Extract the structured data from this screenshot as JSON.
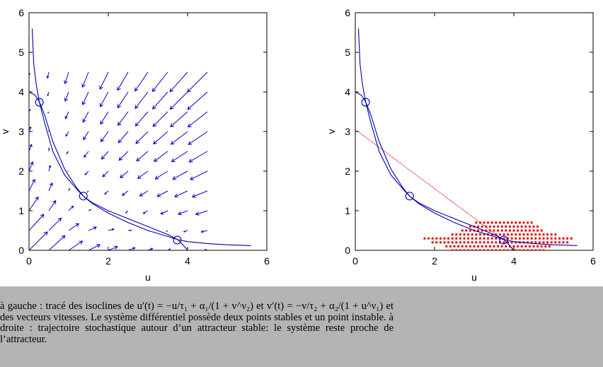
{
  "chart_data": [
    {
      "type": "line",
      "title": "",
      "xlabel": "u",
      "ylabel": "v",
      "xlim": [
        0,
        6
      ],
      "ylim": [
        0,
        6
      ],
      "xticks": [
        "0",
        "2",
        "4",
        "6"
      ],
      "yticks": [
        "0",
        "1",
        "2",
        "3",
        "4",
        "5",
        "6"
      ],
      "series": [
        {
          "x": [
            0.08,
            0.12,
            0.18,
            0.26,
            0.4,
            0.6,
            0.9,
            1.2,
            1.37,
            1.6,
            2.0,
            2.5,
            3.0,
            3.5,
            3.75,
            4.0,
            4.5,
            5.0,
            5.6
          ],
          "y": [
            5.6,
            4.7,
            4.2,
            3.75,
            3.2,
            2.5,
            1.9,
            1.55,
            1.37,
            1.18,
            0.94,
            0.7,
            0.5,
            0.35,
            0.27,
            0.22,
            0.17,
            0.14,
            0.12
          ]
        },
        {
          "x": [
            0.0,
            0.15,
            0.26,
            0.4,
            0.6,
            0.9,
            1.2,
            1.37,
            1.6,
            2.0,
            2.5,
            3.0,
            3.5,
            3.75,
            3.9,
            4.0
          ],
          "y": [
            4.0,
            3.92,
            3.75,
            3.4,
            2.75,
            2.05,
            1.58,
            1.37,
            1.2,
            1.0,
            0.8,
            0.6,
            0.4,
            0.27,
            0.12,
            0.0
          ]
        }
      ],
      "equilibria": [
        {
          "u": 0.26,
          "v": 3.74
        },
        {
          "u": 1.37,
          "v": 1.37
        },
        {
          "u": 3.74,
          "v": 0.26
        }
      ],
      "vector_field": {
        "u_range": [
          0,
          4.5
        ],
        "v_range": [
          0,
          4.5
        ],
        "step": 0.5,
        "color": "#0000cc"
      },
      "colors": {
        "curve": "#0000aa",
        "arrow": "#0000cc"
      }
    },
    {
      "type": "scatter",
      "title": "",
      "xlabel": "u",
      "ylabel": "v",
      "xlim": [
        0,
        6
      ],
      "ylim": [
        0,
        6
      ],
      "xticks": [
        "0",
        "2",
        "4",
        "6"
      ],
      "yticks": [
        "0",
        "1",
        "2",
        "3",
        "4",
        "5",
        "6"
      ],
      "series": [
        {
          "x": [
            0.08,
            0.12,
            0.18,
            0.26,
            0.4,
            0.6,
            0.9,
            1.2,
            1.37,
            1.6,
            2.0,
            2.5,
            3.0,
            3.5,
            3.75,
            4.0,
            4.5,
            5.0,
            5.6
          ],
          "y": [
            5.6,
            4.7,
            4.2,
            3.75,
            3.2,
            2.5,
            1.9,
            1.55,
            1.37,
            1.18,
            0.94,
            0.7,
            0.5,
            0.35,
            0.27,
            0.22,
            0.17,
            0.14,
            0.12
          ]
        },
        {
          "x": [
            0.0,
            0.15,
            0.26,
            0.4,
            0.6,
            0.9,
            1.2,
            1.37,
            1.6,
            2.0,
            2.5,
            3.0,
            3.5,
            3.75,
            3.9,
            4.0
          ],
          "y": [
            4.0,
            3.92,
            3.75,
            3.4,
            2.75,
            2.05,
            1.58,
            1.37,
            1.2,
            1.0,
            0.8,
            0.6,
            0.4,
            0.27,
            0.12,
            0.0
          ]
        }
      ],
      "equilibria": [
        {
          "u": 0.26,
          "v": 3.74
        },
        {
          "u": 1.37,
          "v": 1.37
        },
        {
          "u": 3.74,
          "v": 0.26
        }
      ],
      "trajectory": {
        "x": [
          0.0,
          3.74
        ],
        "y": [
          3.05,
          0.26
        ]
      },
      "stochastic_cloud": {
        "rows": [
          {
            "v": 0.7,
            "u_from": 3.05,
            "u_to": 4.5
          },
          {
            "v": 0.6,
            "u_from": 2.9,
            "u_to": 4.6
          },
          {
            "v": 0.5,
            "u_from": 2.7,
            "u_to": 4.75
          },
          {
            "v": 0.4,
            "u_from": 2.45,
            "u_to": 5.1
          },
          {
            "v": 0.3,
            "u_from": 1.75,
            "u_to": 5.45
          },
          {
            "v": 0.2,
            "u_from": 1.95,
            "u_to": 5.35
          },
          {
            "v": 0.1,
            "u_from": 2.3,
            "u_to": 4.95
          },
          {
            "v": 0.0,
            "u_from": 2.45,
            "u_to": 4.75
          }
        ],
        "step": 0.1
      },
      "colors": {
        "curve": "#0000aa",
        "trajectory": "#dd0000",
        "cloud": "#ee0000"
      }
    }
  ],
  "caption": "à gauche : tracé des isoclines de u′(t) = −u/τ₁ + α₁/(1 + v^ν₂) et v′(t) = −v/τ₂ + α₂/(1 + u^ν₁) et des vecteurs vitesses. Le système différentiel possède deux points stables et un point instable. à droite : trajectoire stochastique autour d’un attracteur stable: le système reste proche de l’attracteur."
}
